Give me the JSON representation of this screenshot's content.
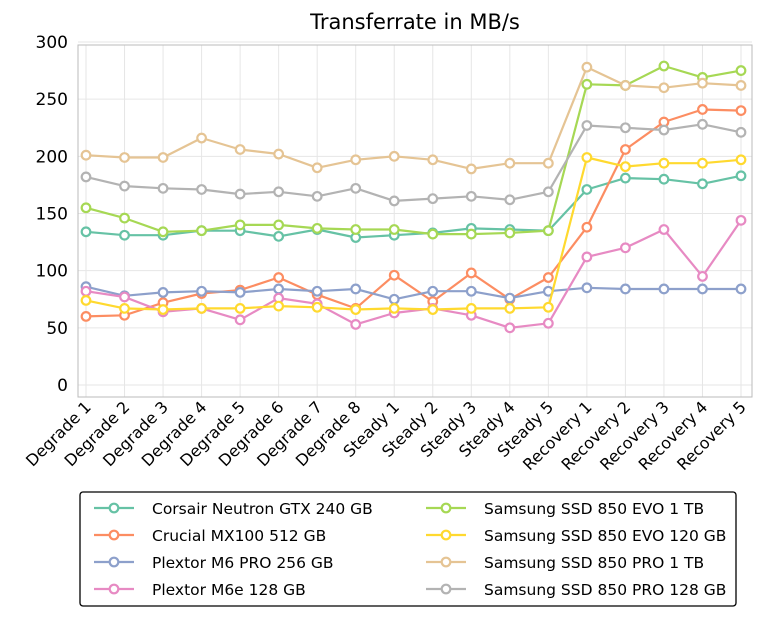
{
  "chart_data": {
    "type": "line",
    "title": "Transferrate in MB/s",
    "xlabel": "",
    "ylabel": "",
    "ylim": [
      0,
      300
    ],
    "yticks": [
      0,
      50,
      100,
      150,
      200,
      250,
      300
    ],
    "grid": true,
    "legend_position": "bottom",
    "categories": [
      "Degrade 1",
      "Degrade 2",
      "Degrade 3",
      "Degrade 4",
      "Degrade 5",
      "Degrade 6",
      "Degrade 7",
      "Degrade 8",
      "Steady 1",
      "Steady 2",
      "Steady 3",
      "Steady 4",
      "Steady 5",
      "Recovery 1",
      "Recovery 2",
      "Recovery 3",
      "Recovery 4",
      "Recovery 5"
    ],
    "series": [
      {
        "name": "Corsair Neutron GTX 240 GB",
        "color": "#66c2a5",
        "values": [
          134,
          131,
          131,
          135,
          135,
          130,
          136,
          129,
          131,
          133,
          137,
          136,
          135,
          171,
          181,
          180,
          176,
          183
        ]
      },
      {
        "name": "Crucial MX100 512 GB",
        "color": "#fc8d62",
        "values": [
          60,
          61,
          72,
          80,
          83,
          94,
          79,
          67,
          96,
          73,
          98,
          75,
          94,
          138,
          206,
          230,
          241,
          240
        ]
      },
      {
        "name": "Plextor M6 PRO 256 GB",
        "color": "#8da0cb",
        "values": [
          86,
          78,
          81,
          82,
          81,
          84,
          82,
          84,
          75,
          82,
          82,
          76,
          82,
          85,
          84,
          84,
          84,
          84
        ]
      },
      {
        "name": "Plextor M6e 128 GB",
        "color": "#e78ac3",
        "values": [
          82,
          77,
          64,
          67,
          57,
          76,
          71,
          53,
          63,
          67,
          61,
          50,
          54,
          112,
          120,
          136,
          95,
          144
        ]
      },
      {
        "name": "Samsung SSD 850 EVO 1 TB",
        "color": "#a6d854",
        "values": [
          155,
          146,
          134,
          135,
          140,
          140,
          137,
          136,
          136,
          132,
          132,
          133,
          135,
          263,
          262,
          279,
          269,
          275
        ]
      },
      {
        "name": "Samsung SSD 850 EVO 120 GB",
        "color": "#ffd92f",
        "values": [
          74,
          67,
          66,
          67,
          67,
          69,
          68,
          66,
          67,
          66,
          67,
          67,
          68,
          199,
          191,
          194,
          194,
          197
        ]
      },
      {
        "name": "Samsung SSD 850 PRO 1 TB",
        "color": "#e5c494",
        "values": [
          201,
          199,
          199,
          216,
          206,
          202,
          190,
          197,
          200,
          197,
          189,
          194,
          194,
          278,
          262,
          260,
          264,
          262
        ]
      },
      {
        "name": "Samsung SSD 850 PRO 128 GB",
        "color": "#b3b3b3",
        "values": [
          182,
          174,
          172,
          171,
          167,
          169,
          165,
          172,
          161,
          163,
          165,
          162,
          169,
          227,
          225,
          223,
          228,
          221
        ]
      }
    ]
  }
}
